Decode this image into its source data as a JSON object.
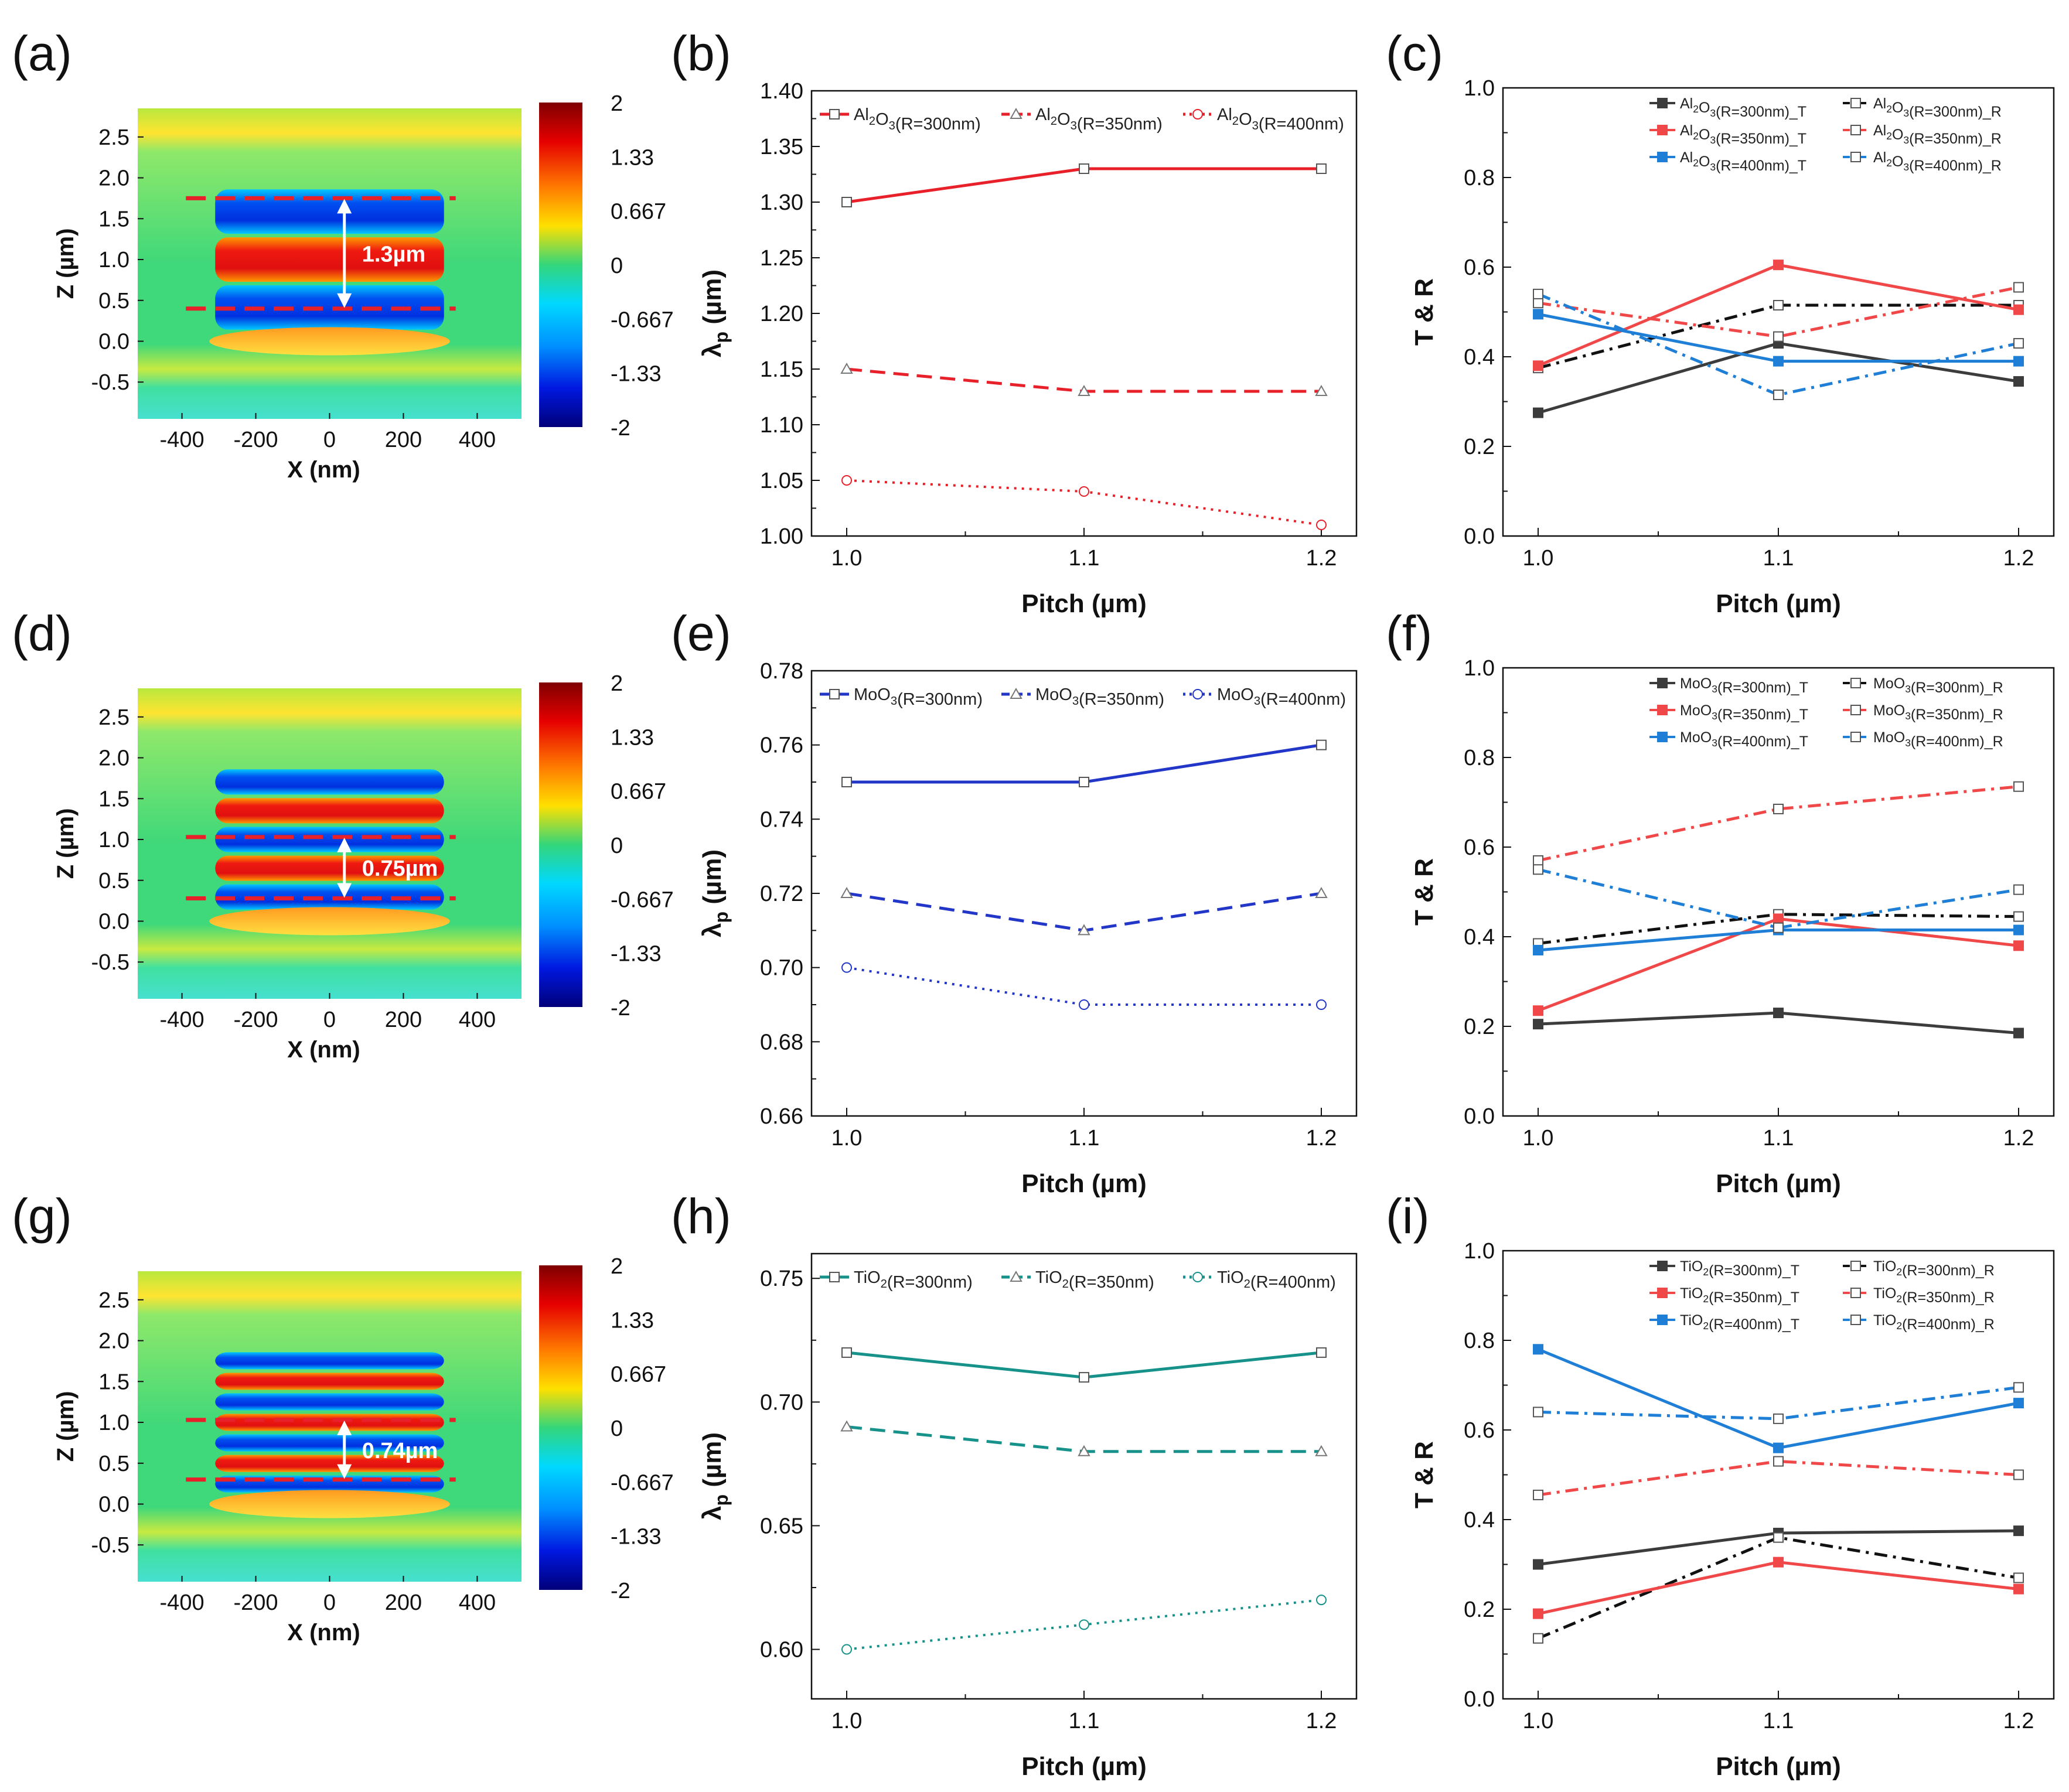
{
  "figure": {
    "rows": [
      {
        "letters": [
          "(a)",
          "(b)",
          "(c)"
        ],
        "field": {
          "annotation": "1.3µm",
          "xlabel": "X (nm)",
          "ylabel": "Z (µm)",
          "x_ticks": [
            "-400",
            "-200",
            "0",
            "200",
            "400"
          ],
          "y_ticks": [
            "2.5",
            "2.0",
            "1.5",
            "1.0",
            "0.5",
            "0.0",
            "-0.5"
          ],
          "colorbar_ticks": [
            "2",
            "1.33",
            "0.667",
            "0",
            "-0.667",
            "-1.33",
            "-2"
          ],
          "dashed_lines_um": [
            1.75,
            0.4
          ],
          "bands": 3
        },
        "wavelength_chart": {
          "type": "line",
          "xlabel": "Pitch (µm)",
          "ylabel": "λp (µm)",
          "x": [
            1.0,
            1.1,
            1.2
          ],
          "x_ticks": [
            "1.0",
            "1.1",
            "1.2"
          ],
          "ylim": [
            1.0,
            1.4
          ],
          "y_ticks": [
            "1.40",
            "1.35",
            "1.30",
            "1.25",
            "1.20",
            "1.15",
            "1.10",
            "1.05",
            "1.00"
          ],
          "color": "#e8202a",
          "series": [
            {
              "name": "Al2O3(R=300nm)",
              "values": [
                1.3,
                1.33,
                1.33
              ],
              "dash": "solid",
              "marker": "square"
            },
            {
              "name": "Al2O3(R=350nm)",
              "values": [
                1.15,
                1.13,
                1.13
              ],
              "dash": "dash",
              "marker": "triangle"
            },
            {
              "name": "Al2O3(R=400nm)",
              "values": [
                1.05,
                1.04,
                1.01
              ],
              "dash": "dot",
              "marker": "circle"
            }
          ]
        },
        "tr_chart": {
          "type": "line",
          "xlabel": "Pitch (µm)",
          "ylabel": "T & R",
          "x": [
            1.0,
            1.1,
            1.2
          ],
          "x_ticks": [
            "1.0",
            "1.1",
            "1.2"
          ],
          "ylim": [
            0.0,
            1.0
          ],
          "y_ticks": [
            "1.0",
            "0.8",
            "0.6",
            "0.4",
            "0.2",
            "0.0"
          ],
          "series": [
            {
              "name": "Al2O3(R=300nm)_T",
              "values": [
                0.275,
                0.43,
                0.345
              ],
              "color": "#3c3c3c",
              "dash": "solid",
              "filled": true
            },
            {
              "name": "Al2O3(R=300nm)_R",
              "values": [
                0.375,
                0.515,
                0.515
              ],
              "color": "#111111",
              "dash": "dashdot",
              "filled": false
            },
            {
              "name": "Al2O3(R=350nm)_T",
              "values": [
                0.38,
                0.605,
                0.505
              ],
              "color": "#f04848",
              "dash": "solid",
              "filled": true
            },
            {
              "name": "Al2O3(R=350nm)_R",
              "values": [
                0.52,
                0.445,
                0.555
              ],
              "color": "#f04848",
              "dash": "dashdot",
              "filled": false
            },
            {
              "name": "Al2O3(R=400nm)_T",
              "values": [
                0.495,
                0.39,
                0.39
              ],
              "color": "#1f7fd6",
              "dash": "solid",
              "filled": true
            },
            {
              "name": "Al2O3(R=400nm)_R",
              "values": [
                0.54,
                0.315,
                0.43
              ],
              "color": "#1f7fd6",
              "dash": "dashdot",
              "filled": false
            }
          ]
        }
      },
      {
        "letters": [
          "(d)",
          "(e)",
          "(f)"
        ],
        "field": {
          "annotation": "0.75µm",
          "xlabel": "X (nm)",
          "ylabel": "Z (µm)",
          "x_ticks": [
            "-400",
            "-200",
            "0",
            "200",
            "400"
          ],
          "y_ticks": [
            "2.5",
            "2.0",
            "1.5",
            "1.0",
            "0.5",
            "0.0",
            "-0.5"
          ],
          "colorbar_ticks": [
            "2",
            "1.33",
            "0.667",
            "0",
            "-0.667",
            "-1.33",
            "-2"
          ],
          "dashed_lines_um": [
            1.03,
            0.28
          ],
          "bands": 5
        },
        "wavelength_chart": {
          "type": "line",
          "xlabel": "Pitch (µm)",
          "ylabel": "λp (µm)",
          "x": [
            1.0,
            1.1,
            1.2
          ],
          "x_ticks": [
            "1.0",
            "1.1",
            "1.2"
          ],
          "ylim": [
            0.66,
            0.78
          ],
          "y_ticks": [
            "0.78",
            "0.76",
            "0.74",
            "0.72",
            "0.70",
            "0.68",
            "0.66"
          ],
          "color": "#2236c8",
          "series": [
            {
              "name": "MoO3(R=300nm)",
              "values": [
                0.75,
                0.75,
                0.76
              ],
              "dash": "solid",
              "marker": "square"
            },
            {
              "name": "MoO3(R=350nm)",
              "values": [
                0.72,
                0.71,
                0.72
              ],
              "dash": "dash",
              "marker": "triangle"
            },
            {
              "name": "MoO3(R=400nm)",
              "values": [
                0.7,
                0.69,
                0.69
              ],
              "dash": "dot",
              "marker": "circle"
            }
          ]
        },
        "tr_chart": {
          "type": "line",
          "xlabel": "Pitch (µm)",
          "ylabel": "T & R",
          "x": [
            1.0,
            1.1,
            1.2
          ],
          "x_ticks": [
            "1.0",
            "1.1",
            "1.2"
          ],
          "ylim": [
            0.0,
            1.0
          ],
          "y_ticks": [
            "1.0",
            "0.8",
            "0.6",
            "0.4",
            "0.2",
            "0.0"
          ],
          "series": [
            {
              "name": "MoO3(R=300nm)_T",
              "values": [
                0.205,
                0.23,
                0.185
              ],
              "color": "#3c3c3c",
              "dash": "solid",
              "filled": true
            },
            {
              "name": "MoO3(R=300nm)_R",
              "values": [
                0.385,
                0.45,
                0.445
              ],
              "color": "#111111",
              "dash": "dashdot",
              "filled": false
            },
            {
              "name": "MoO3(R=350nm)_T",
              "values": [
                0.235,
                0.44,
                0.38
              ],
              "color": "#f04848",
              "dash": "solid",
              "filled": true
            },
            {
              "name": "MoO3(R=350nm)_R",
              "values": [
                0.57,
                0.685,
                0.735
              ],
              "color": "#f04848",
              "dash": "dashdot",
              "filled": false
            },
            {
              "name": "MoO3(R=400nm)_T",
              "values": [
                0.37,
                0.415,
                0.415
              ],
              "color": "#1f7fd6",
              "dash": "solid",
              "filled": true
            },
            {
              "name": "MoO3(R=400nm)_R",
              "values": [
                0.55,
                0.42,
                0.505
              ],
              "color": "#1f7fd6",
              "dash": "dashdot",
              "filled": false
            }
          ]
        }
      },
      {
        "letters": [
          "(g)",
          "(h)",
          "(i)"
        ],
        "field": {
          "annotation": "0.74µm",
          "xlabel": "X (nm)",
          "ylabel": "Z (µm)",
          "x_ticks": [
            "-400",
            "-200",
            "0",
            "200",
            "400"
          ],
          "y_ticks": [
            "2.5",
            "2.0",
            "1.5",
            "1.0",
            "0.5",
            "0.0",
            "-0.5"
          ],
          "colorbar_ticks": [
            "2",
            "1.33",
            "0.667",
            "0",
            "-0.667",
            "-1.33",
            "-2"
          ],
          "dashed_lines_um": [
            1.03,
            0.3
          ],
          "bands": 7
        },
        "wavelength_chart": {
          "type": "line",
          "xlabel": "Pitch (µm)",
          "ylabel": "λp (µm)",
          "x": [
            1.0,
            1.1,
            1.2
          ],
          "x_ticks": [
            "1.0",
            "1.1",
            "1.2"
          ],
          "ylim": [
            0.58,
            0.76
          ],
          "y_ticks": [
            "0.75",
            "0.70",
            "0.65",
            "0.60"
          ],
          "color": "#16928a",
          "series": [
            {
              "name": "TiO2(R=300nm)",
              "values": [
                0.72,
                0.71,
                0.72
              ],
              "dash": "solid",
              "marker": "square"
            },
            {
              "name": "TiO2(R=350nm)",
              "values": [
                0.69,
                0.68,
                0.68
              ],
              "dash": "dash",
              "marker": "triangle"
            },
            {
              "name": "TiO2(R=400nm)",
              "values": [
                0.6,
                0.61,
                0.62
              ],
              "dash": "dot",
              "marker": "circle"
            }
          ]
        },
        "tr_chart": {
          "type": "line",
          "xlabel": "Pitch (µm)",
          "ylabel": "T & R",
          "x": [
            1.0,
            1.1,
            1.2
          ],
          "x_ticks": [
            "1.0",
            "1.1",
            "1.2"
          ],
          "ylim": [
            0.0,
            1.0
          ],
          "y_ticks": [
            "1.0",
            "0.8",
            "0.6",
            "0.4",
            "0.2",
            "0.0"
          ],
          "series": [
            {
              "name": "TiO2(R=300nm)_T",
              "values": [
                0.3,
                0.37,
                0.375
              ],
              "color": "#3c3c3c",
              "dash": "solid",
              "filled": true
            },
            {
              "name": "TiO2(R=300nm)_R",
              "values": [
                0.135,
                0.36,
                0.27
              ],
              "color": "#111111",
              "dash": "dashdot",
              "filled": false
            },
            {
              "name": "TiO2(R=350nm)_T",
              "values": [
                0.19,
                0.305,
                0.245
              ],
              "color": "#f04848",
              "dash": "solid",
              "filled": true
            },
            {
              "name": "TiO2(R=350nm)_R",
              "values": [
                0.455,
                0.53,
                0.5
              ],
              "color": "#f04848",
              "dash": "dashdot",
              "filled": false
            },
            {
              "name": "TiO2(R=400nm)_T",
              "values": [
                0.78,
                0.56,
                0.66
              ],
              "color": "#1f7fd6",
              "dash": "solid",
              "filled": true
            },
            {
              "name": "TiO2(R=400nm)_R",
              "values": [
                0.64,
                0.625,
                0.695
              ],
              "color": "#1f7fd6",
              "dash": "dashdot",
              "filled": false
            }
          ]
        }
      }
    ]
  },
  "chart_data": [
    {
      "panel": "(b)",
      "type": "line",
      "xlabel": "Pitch (µm)",
      "ylabel": "λp (µm)",
      "x": [
        1.0,
        1.1,
        1.2
      ],
      "ylim": [
        1.0,
        1.4
      ],
      "series": [
        {
          "name": "Al2O3(R=300nm)",
          "values": [
            1.3,
            1.33,
            1.33
          ]
        },
        {
          "name": "Al2O3(R=350nm)",
          "values": [
            1.15,
            1.13,
            1.13
          ]
        },
        {
          "name": "Al2O3(R=400nm)",
          "values": [
            1.05,
            1.04,
            1.01
          ]
        }
      ]
    },
    {
      "panel": "(c)",
      "type": "line",
      "xlabel": "Pitch (µm)",
      "ylabel": "T & R",
      "x": [
        1.0,
        1.1,
        1.2
      ],
      "ylim": [
        0.0,
        1.0
      ],
      "series": [
        {
          "name": "Al2O3(R=300nm)_T",
          "values": [
            0.275,
            0.43,
            0.345
          ]
        },
        {
          "name": "Al2O3(R=300nm)_R",
          "values": [
            0.375,
            0.515,
            0.515
          ]
        },
        {
          "name": "Al2O3(R=350nm)_T",
          "values": [
            0.38,
            0.605,
            0.505
          ]
        },
        {
          "name": "Al2O3(R=350nm)_R",
          "values": [
            0.52,
            0.445,
            0.555
          ]
        },
        {
          "name": "Al2O3(R=400nm)_T",
          "values": [
            0.495,
            0.39,
            0.39
          ]
        },
        {
          "name": "Al2O3(R=400nm)_R",
          "values": [
            0.54,
            0.315,
            0.43
          ]
        }
      ]
    },
    {
      "panel": "(e)",
      "type": "line",
      "xlabel": "Pitch (µm)",
      "ylabel": "λp (µm)",
      "x": [
        1.0,
        1.1,
        1.2
      ],
      "ylim": [
        0.66,
        0.78
      ],
      "series": [
        {
          "name": "MoO3(R=300nm)",
          "values": [
            0.75,
            0.75,
            0.76
          ]
        },
        {
          "name": "MoO3(R=350nm)",
          "values": [
            0.72,
            0.71,
            0.72
          ]
        },
        {
          "name": "MoO3(R=400nm)",
          "values": [
            0.7,
            0.69,
            0.69
          ]
        }
      ]
    },
    {
      "panel": "(f)",
      "type": "line",
      "xlabel": "Pitch (µm)",
      "ylabel": "T & R",
      "x": [
        1.0,
        1.1,
        1.2
      ],
      "ylim": [
        0.0,
        1.0
      ],
      "series": [
        {
          "name": "MoO3(R=300nm)_T",
          "values": [
            0.205,
            0.23,
            0.185
          ]
        },
        {
          "name": "MoO3(R=300nm)_R",
          "values": [
            0.385,
            0.45,
            0.445
          ]
        },
        {
          "name": "MoO3(R=350nm)_T",
          "values": [
            0.235,
            0.44,
            0.38
          ]
        },
        {
          "name": "MoO3(R=350nm)_R",
          "values": [
            0.57,
            0.685,
            0.735
          ]
        },
        {
          "name": "MoO3(R=400nm)_T",
          "values": [
            0.37,
            0.415,
            0.415
          ]
        },
        {
          "name": "MoO3(R=400nm)_R",
          "values": [
            0.55,
            0.42,
            0.505
          ]
        }
      ]
    },
    {
      "panel": "(h)",
      "type": "line",
      "xlabel": "Pitch (µm)",
      "ylabel": "λp (µm)",
      "x": [
        1.0,
        1.1,
        1.2
      ],
      "ylim": [
        0.58,
        0.76
      ],
      "series": [
        {
          "name": "TiO2(R=300nm)",
          "values": [
            0.72,
            0.71,
            0.72
          ]
        },
        {
          "name": "TiO2(R=350nm)",
          "values": [
            0.69,
            0.68,
            0.68
          ]
        },
        {
          "name": "TiO2(R=400nm)",
          "values": [
            0.6,
            0.61,
            0.62
          ]
        }
      ]
    },
    {
      "panel": "(i)",
      "type": "line",
      "xlabel": "Pitch (µm)",
      "ylabel": "T & R",
      "x": [
        1.0,
        1.1,
        1.2
      ],
      "ylim": [
        0.0,
        1.0
      ],
      "series": [
        {
          "name": "TiO2(R=300nm)_T",
          "values": [
            0.3,
            0.37,
            0.375
          ]
        },
        {
          "name": "TiO2(R=300nm)_R",
          "values": [
            0.135,
            0.36,
            0.27
          ]
        },
        {
          "name": "TiO2(R=350nm)_T",
          "values": [
            0.19,
            0.305,
            0.245
          ]
        },
        {
          "name": "TiO2(R=350nm)_R",
          "values": [
            0.455,
            0.53,
            0.5
          ]
        },
        {
          "name": "TiO2(R=400nm)_T",
          "values": [
            0.78,
            0.56,
            0.66
          ]
        },
        {
          "name": "TiO2(R=400nm)_R",
          "values": [
            0.64,
            0.625,
            0.695
          ]
        }
      ]
    }
  ]
}
